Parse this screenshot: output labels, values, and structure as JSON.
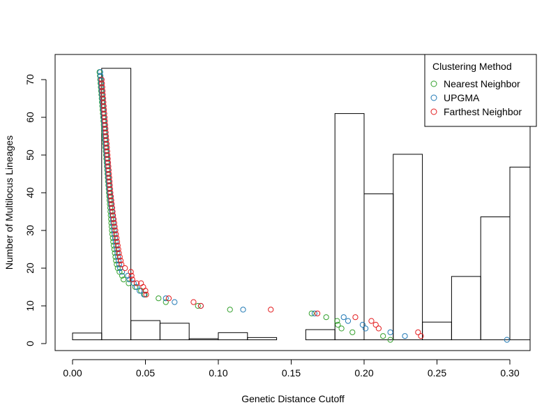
{
  "chart_data": {
    "type": "scatter",
    "title": "",
    "xlabel": "Genetic Distance Cutoff",
    "ylabel": "Number of Multilocus Lineages",
    "xlim": [
      -0.012,
      0.3125
    ],
    "ylim": [
      -2,
      76
    ],
    "x_ticks": [
      0.0,
      0.05,
      0.1,
      0.15,
      0.2,
      0.25,
      0.3
    ],
    "x_tick_labels": [
      "0.00",
      "0.05",
      "0.10",
      "0.15",
      "0.20",
      "0.25",
      "0.30"
    ],
    "y_ticks": [
      0,
      10,
      20,
      30,
      40,
      50,
      60,
      70
    ],
    "y_tick_labels": [
      "0",
      "10",
      "20",
      "30",
      "40",
      "50",
      "60",
      "70"
    ],
    "grid": false,
    "legend": {
      "title": "Clustering Method",
      "placement": "top-right",
      "entries": [
        "Nearest Neighbor",
        "UPGMA",
        "Farthest Neighbor"
      ]
    },
    "histogram": {
      "baseline": 1,
      "bins": [
        {
          "x0": 0.0,
          "x1": 0.02,
          "top": 2.8
        },
        {
          "x0": 0.02,
          "x1": 0.04,
          "top": 73
        },
        {
          "x0": 0.04,
          "x1": 0.06,
          "top": 6.1
        },
        {
          "x0": 0.06,
          "x1": 0.08,
          "top": 5.4
        },
        {
          "x0": 0.08,
          "x1": 0.1,
          "top": 1.3
        },
        {
          "x0": 0.1,
          "x1": 0.12,
          "top": 2.9
        },
        {
          "x0": 0.12,
          "x1": 0.14,
          "top": 1.6
        },
        {
          "x0": 0.14,
          "x1": 0.16,
          "top": 1.0
        },
        {
          "x0": 0.16,
          "x1": 0.18,
          "top": 3.7
        },
        {
          "x0": 0.18,
          "x1": 0.2,
          "top": 61
        },
        {
          "x0": 0.2,
          "x1": 0.22,
          "top": 39.7
        },
        {
          "x0": 0.22,
          "x1": 0.24,
          "top": 50.2
        },
        {
          "x0": 0.24,
          "x1": 0.26,
          "top": 5.7
        },
        {
          "x0": 0.26,
          "x1": 0.28,
          "top": 17.8
        },
        {
          "x0": 0.28,
          "x1": 0.3,
          "top": 33.6
        },
        {
          "x0": 0.3,
          "x1": 0.32,
          "top": 46.8
        }
      ]
    },
    "series": [
      {
        "name": "Nearest Neighbor",
        "color": "#33a02c",
        "points": [
          [
            0.0185,
            72
          ],
          [
            0.0188,
            71
          ],
          [
            0.019,
            70
          ],
          [
            0.0192,
            69
          ],
          [
            0.0194,
            68
          ],
          [
            0.0196,
            67
          ],
          [
            0.0198,
            66
          ],
          [
            0.02,
            65
          ],
          [
            0.0202,
            64
          ],
          [
            0.0204,
            63
          ],
          [
            0.0206,
            62
          ],
          [
            0.0208,
            61
          ],
          [
            0.021,
            60
          ],
          [
            0.0212,
            59
          ],
          [
            0.0214,
            58
          ],
          [
            0.0216,
            57
          ],
          [
            0.0218,
            56
          ],
          [
            0.022,
            55
          ],
          [
            0.0222,
            54
          ],
          [
            0.0224,
            53
          ],
          [
            0.0226,
            52
          ],
          [
            0.0228,
            51
          ],
          [
            0.023,
            50
          ],
          [
            0.0232,
            49
          ],
          [
            0.0234,
            48
          ],
          [
            0.0236,
            47
          ],
          [
            0.0238,
            46
          ],
          [
            0.024,
            45
          ],
          [
            0.0242,
            44
          ],
          [
            0.0244,
            43
          ],
          [
            0.0246,
            42
          ],
          [
            0.0248,
            41
          ],
          [
            0.025,
            40
          ],
          [
            0.0252,
            39
          ],
          [
            0.0254,
            38
          ],
          [
            0.0256,
            37
          ],
          [
            0.0258,
            36
          ],
          [
            0.026,
            35
          ],
          [
            0.0262,
            34
          ],
          [
            0.0264,
            33
          ],
          [
            0.0266,
            32
          ],
          [
            0.0268,
            31
          ],
          [
            0.027,
            30
          ],
          [
            0.0273,
            29
          ],
          [
            0.0276,
            28
          ],
          [
            0.0279,
            27
          ],
          [
            0.0282,
            26
          ],
          [
            0.0286,
            25
          ],
          [
            0.029,
            24
          ],
          [
            0.0294,
            23
          ],
          [
            0.0298,
            22
          ],
          [
            0.0303,
            21
          ],
          [
            0.031,
            20
          ],
          [
            0.0322,
            19
          ],
          [
            0.034,
            18
          ],
          [
            0.035,
            17
          ],
          [
            0.0385,
            16
          ],
          [
            0.043,
            15
          ],
          [
            0.047,
            14
          ],
          [
            0.0495,
            13
          ],
          [
            0.059,
            12
          ],
          [
            0.064,
            11
          ],
          [
            0.086,
            10
          ],
          [
            0.108,
            9
          ],
          [
            0.164,
            8
          ],
          [
            0.174,
            7
          ],
          [
            0.1815,
            6
          ],
          [
            0.182,
            5
          ],
          [
            0.1845,
            4
          ],
          [
            0.192,
            3
          ],
          [
            0.213,
            2
          ],
          [
            0.218,
            1
          ]
        ]
      },
      {
        "name": "UPGMA",
        "color": "#1f78b4",
        "points": [
          [
            0.019,
            72
          ],
          [
            0.0192,
            71
          ],
          [
            0.0194,
            70
          ],
          [
            0.0196,
            69
          ],
          [
            0.0198,
            68
          ],
          [
            0.02,
            67
          ],
          [
            0.0202,
            66
          ],
          [
            0.0204,
            65
          ],
          [
            0.0206,
            64
          ],
          [
            0.0208,
            63
          ],
          [
            0.021,
            62
          ],
          [
            0.0212,
            61
          ],
          [
            0.0214,
            60
          ],
          [
            0.0216,
            59
          ],
          [
            0.0218,
            58
          ],
          [
            0.022,
            57
          ],
          [
            0.0222,
            56
          ],
          [
            0.0224,
            55
          ],
          [
            0.0226,
            54
          ],
          [
            0.0228,
            53
          ],
          [
            0.023,
            52
          ],
          [
            0.0232,
            51
          ],
          [
            0.0234,
            50
          ],
          [
            0.0236,
            49
          ],
          [
            0.0238,
            48
          ],
          [
            0.024,
            47
          ],
          [
            0.0242,
            46
          ],
          [
            0.0244,
            45
          ],
          [
            0.0246,
            44
          ],
          [
            0.0248,
            43
          ],
          [
            0.025,
            42
          ],
          [
            0.0252,
            41
          ],
          [
            0.0255,
            40
          ],
          [
            0.0258,
            39
          ],
          [
            0.0261,
            38
          ],
          [
            0.0264,
            37
          ],
          [
            0.0267,
            36
          ],
          [
            0.027,
            35
          ],
          [
            0.0273,
            34
          ],
          [
            0.0276,
            33
          ],
          [
            0.0279,
            32
          ],
          [
            0.0282,
            31
          ],
          [
            0.0285,
            30
          ],
          [
            0.0288,
            29
          ],
          [
            0.0292,
            28
          ],
          [
            0.0296,
            27
          ],
          [
            0.03,
            26
          ],
          [
            0.0304,
            25
          ],
          [
            0.0308,
            24
          ],
          [
            0.0312,
            23
          ],
          [
            0.0316,
            22
          ],
          [
            0.032,
            21
          ],
          [
            0.0326,
            20
          ],
          [
            0.034,
            19
          ],
          [
            0.038,
            18
          ],
          [
            0.039,
            17
          ],
          [
            0.042,
            16
          ],
          [
            0.044,
            15
          ],
          [
            0.046,
            14
          ],
          [
            0.049,
            13
          ],
          [
            0.064,
            12
          ],
          [
            0.07,
            11
          ],
          [
            0.088,
            10
          ],
          [
            0.117,
            9
          ],
          [
            0.166,
            8
          ],
          [
            0.186,
            7
          ],
          [
            0.189,
            6
          ],
          [
            0.199,
            5
          ],
          [
            0.201,
            4
          ],
          [
            0.218,
            3
          ],
          [
            0.228,
            2
          ],
          [
            0.298,
            1
          ]
        ]
      },
      {
        "name": "Farthest Neighbor",
        "color": "#e31a1c",
        "points": [
          [
            0.02,
            70
          ],
          [
            0.0202,
            69
          ],
          [
            0.0204,
            68
          ],
          [
            0.0206,
            67
          ],
          [
            0.0208,
            66
          ],
          [
            0.021,
            65
          ],
          [
            0.0212,
            64
          ],
          [
            0.0214,
            63
          ],
          [
            0.0216,
            62
          ],
          [
            0.0218,
            61
          ],
          [
            0.022,
            60
          ],
          [
            0.0222,
            59
          ],
          [
            0.0224,
            58
          ],
          [
            0.0226,
            57
          ],
          [
            0.0228,
            56
          ],
          [
            0.023,
            55
          ],
          [
            0.0232,
            54
          ],
          [
            0.0234,
            53
          ],
          [
            0.0236,
            52
          ],
          [
            0.0238,
            51
          ],
          [
            0.024,
            50
          ],
          [
            0.0242,
            49
          ],
          [
            0.0244,
            48
          ],
          [
            0.0246,
            47
          ],
          [
            0.0248,
            46
          ],
          [
            0.025,
            45
          ],
          [
            0.0252,
            44
          ],
          [
            0.0254,
            43
          ],
          [
            0.0256,
            42
          ],
          [
            0.0258,
            41
          ],
          [
            0.026,
            40
          ],
          [
            0.0263,
            39
          ],
          [
            0.0266,
            38
          ],
          [
            0.0269,
            37
          ],
          [
            0.0272,
            36
          ],
          [
            0.0275,
            35
          ],
          [
            0.0278,
            34
          ],
          [
            0.0282,
            33
          ],
          [
            0.0286,
            32
          ],
          [
            0.029,
            31
          ],
          [
            0.0294,
            30
          ],
          [
            0.0298,
            29
          ],
          [
            0.0302,
            28
          ],
          [
            0.0306,
            27
          ],
          [
            0.031,
            26
          ],
          [
            0.0314,
            25
          ],
          [
            0.0318,
            24
          ],
          [
            0.0324,
            23
          ],
          [
            0.033,
            22
          ],
          [
            0.0336,
            21
          ],
          [
            0.036,
            20
          ],
          [
            0.04,
            19
          ],
          [
            0.0405,
            18
          ],
          [
            0.041,
            17
          ],
          [
            0.044,
            16
          ],
          [
            0.047,
            16
          ],
          [
            0.0485,
            15
          ],
          [
            0.05,
            14
          ],
          [
            0.0505,
            13
          ],
          [
            0.066,
            12
          ],
          [
            0.083,
            11
          ],
          [
            0.088,
            10
          ],
          [
            0.136,
            9
          ],
          [
            0.168,
            8
          ],
          [
            0.194,
            7
          ],
          [
            0.205,
            6
          ],
          [
            0.208,
            5
          ],
          [
            0.21,
            4
          ],
          [
            0.237,
            3
          ],
          [
            0.239,
            2
          ]
        ]
      }
    ]
  }
}
